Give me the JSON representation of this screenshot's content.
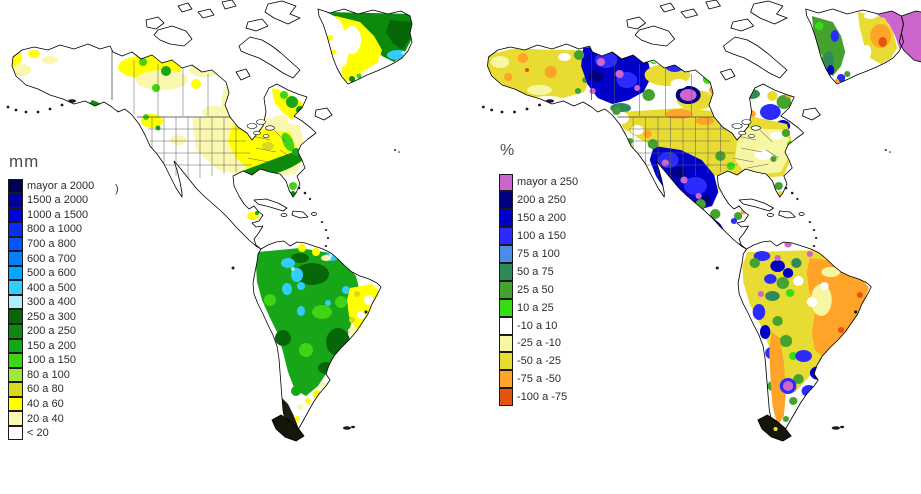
{
  "maps": {
    "left": {
      "unit_label": "mm",
      "stray_text": ")",
      "legend": [
        {
          "label": "mayor a 2000",
          "color": "#000050"
        },
        {
          "label": "1500 a 2000",
          "color": "#0000A0"
        },
        {
          "label": "1000 a 1500",
          "color": "#0000D8"
        },
        {
          "label": "800 a 1000",
          "color": "#0A2CFF"
        },
        {
          "label": "700 a 800",
          "color": "#0055FF"
        },
        {
          "label": "600 a 700",
          "color": "#0080FF"
        },
        {
          "label": "500 a 600",
          "color": "#00AAFF"
        },
        {
          "label": "400 a 500",
          "color": "#33CCFF"
        },
        {
          "label": "300 a 400",
          "color": "#AAEEFF"
        },
        {
          "label": "250 a 300",
          "color": "#076607"
        },
        {
          "label": "200 a 250",
          "color": "#0B8A0B"
        },
        {
          "label": "150 a 200",
          "color": "#17A617"
        },
        {
          "label": "100 a 150",
          "color": "#3FD414"
        },
        {
          "label": "80 a 100",
          "color": "#A4E53C"
        },
        {
          "label": "60 a 80",
          "color": "#D8D820"
        },
        {
          "label": "40 a 60",
          "color": "#FFFF00"
        },
        {
          "label": "20 a 40",
          "color": "#FAF7AE"
        },
        {
          "label": "< 20",
          "color": "#FFFFFF"
        }
      ]
    },
    "right": {
      "unit_label": "%",
      "legend": [
        {
          "label": "mayor a 250",
          "color": "#CC66CC"
        },
        {
          "label": "200 a 250",
          "color": "#000080"
        },
        {
          "label": "150 a 200",
          "color": "#0000C8"
        },
        {
          "label": "100 a 150",
          "color": "#2B2BFF"
        },
        {
          "label": "75 a 100",
          "color": "#4C8BE8"
        },
        {
          "label": "50 a 75",
          "color": "#2E8B57"
        },
        {
          "label": "25 a 50",
          "color": "#46A22E"
        },
        {
          "label": "10 a 25",
          "color": "#37DD13"
        },
        {
          "label": "-10 a 10",
          "color": "#FFFFFF"
        },
        {
          "label": "-25 a -10",
          "color": "#F7F7A3"
        },
        {
          "label": "-50 a -25",
          "color": "#E8DC33"
        },
        {
          "label": "-75 a -50",
          "color": "#FFA428"
        },
        {
          "label": "-100 a -75",
          "color": "#E65210"
        }
      ]
    }
  }
}
